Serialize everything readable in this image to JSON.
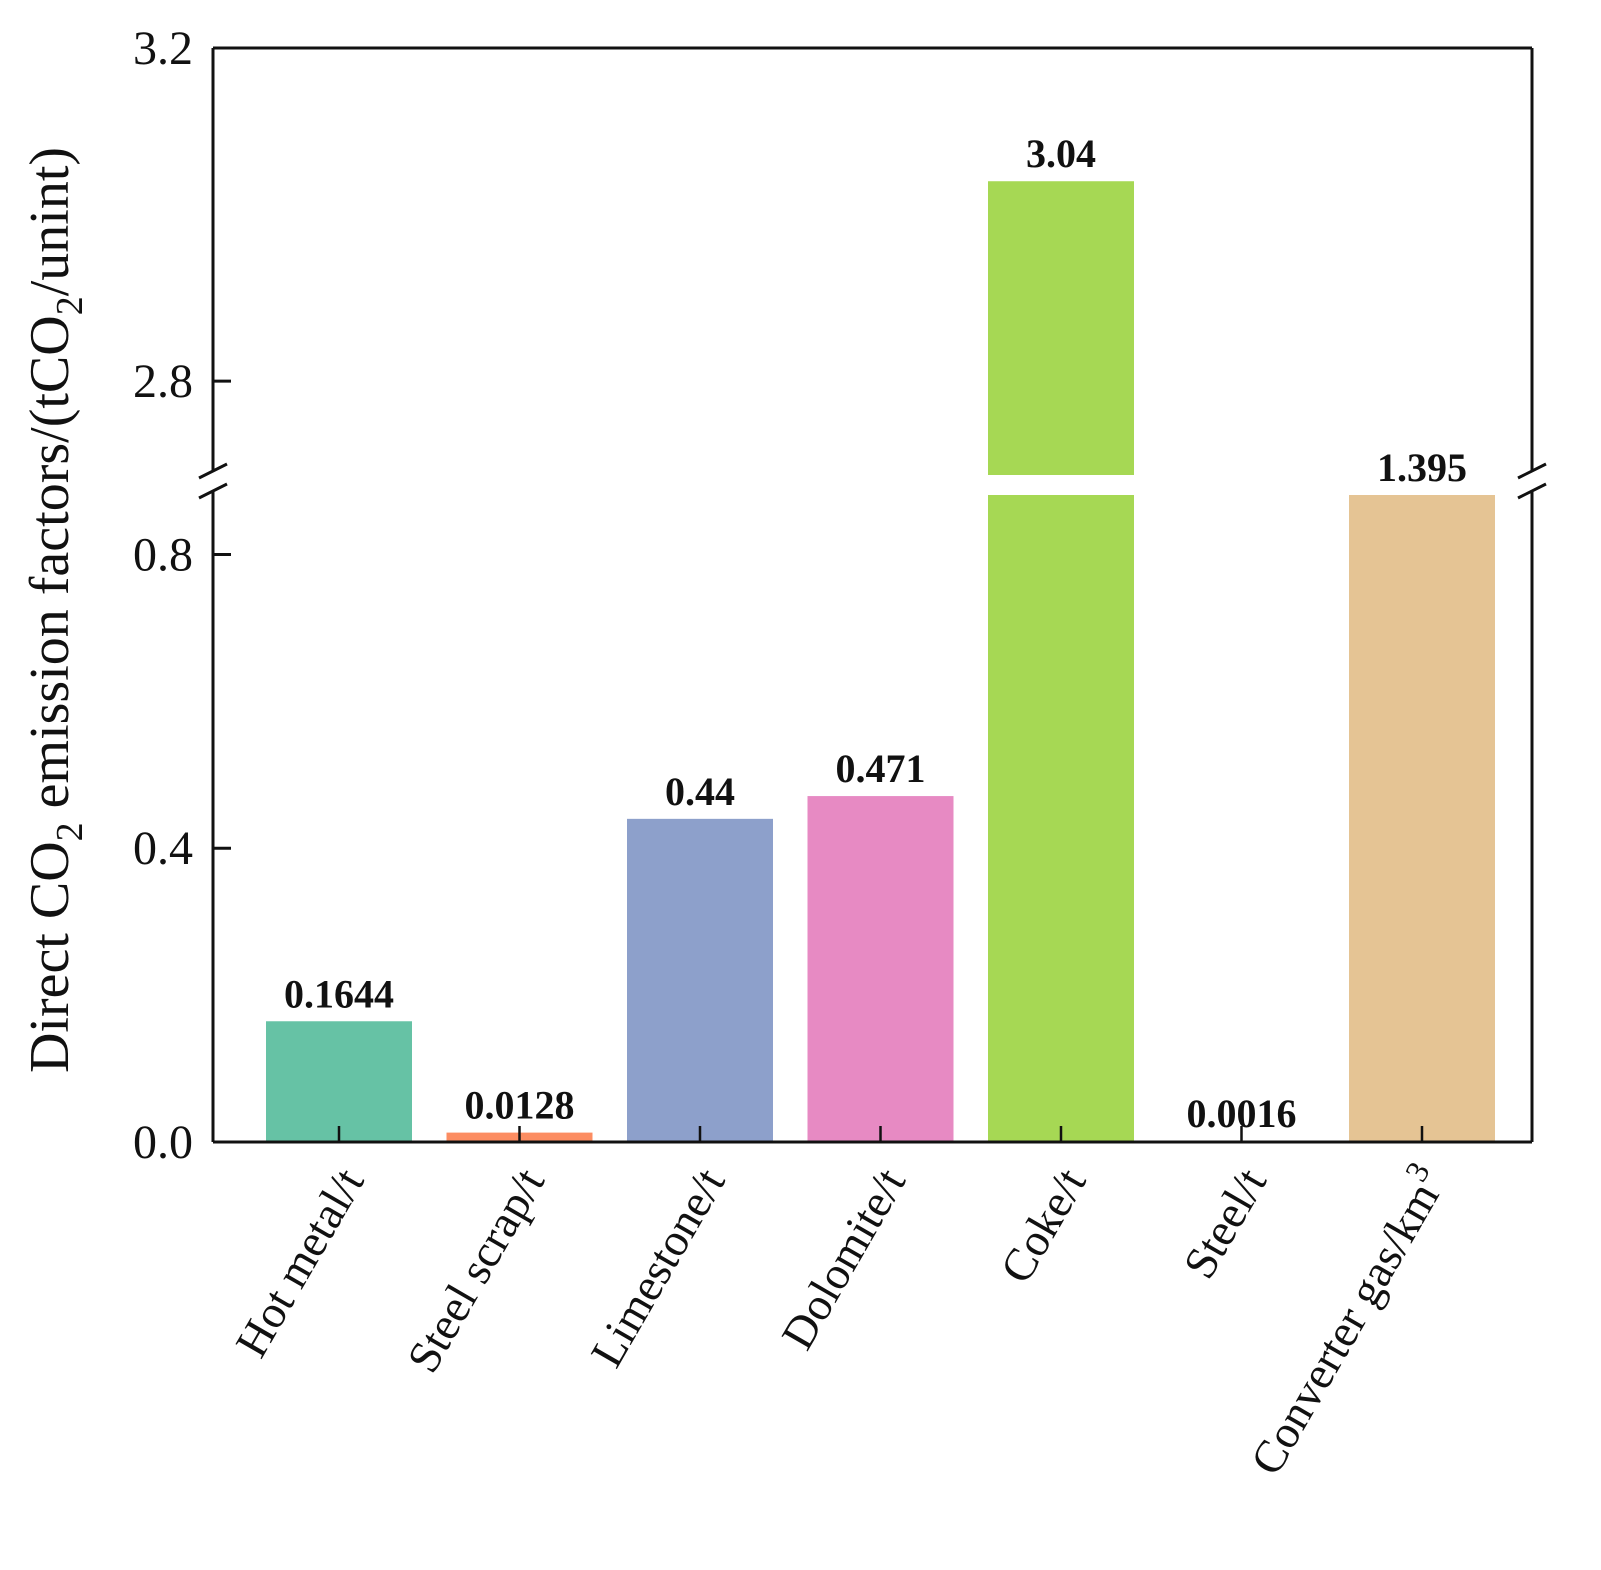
{
  "chart_data": {
    "type": "bar",
    "title": "",
    "xlabel": "",
    "ylabel": {
      "prefix": "Direct CO",
      "sub1": "2",
      "middle": " emission factors/(tCO",
      "sub2": "2",
      "suffix": "/unint)"
    },
    "categories": [
      "Hot metal/t",
      "Steel scrap/t",
      "Limestone/t",
      "Dolomite/t",
      "Coke/t",
      "Steel/t",
      "Converter gas/km"
    ],
    "category_superscript": [
      "",
      "",
      "",
      "",
      "",
      "",
      "3"
    ],
    "values": [
      0.1644,
      0.0128,
      0.44,
      0.471,
      3.04,
      0.0016,
      1.395
    ],
    "value_labels": [
      "0.1644",
      "0.0128",
      "0.44",
      "0.471",
      "3.04",
      "0.0016",
      "1.395"
    ],
    "colors": [
      "#66c2a5",
      "#fc8d62",
      "#8da0cb",
      "#e78ac3",
      "#a6d854",
      "#ffd92f",
      "#e5c494"
    ],
    "broken_axis": {
      "lower_range": [
        0,
        0.9
      ],
      "upper_range": [
        2.68,
        3.2
      ],
      "lower_ticks": [
        0.0,
        0.4,
        0.8
      ],
      "upper_ticks": [
        2.8,
        3.2
      ],
      "lower_tick_labels": [
        "0.0",
        "0.4",
        "0.8"
      ],
      "upper_tick_labels": [
        "2.8",
        "3.2"
      ]
    },
    "grid": false,
    "legend": "none"
  }
}
